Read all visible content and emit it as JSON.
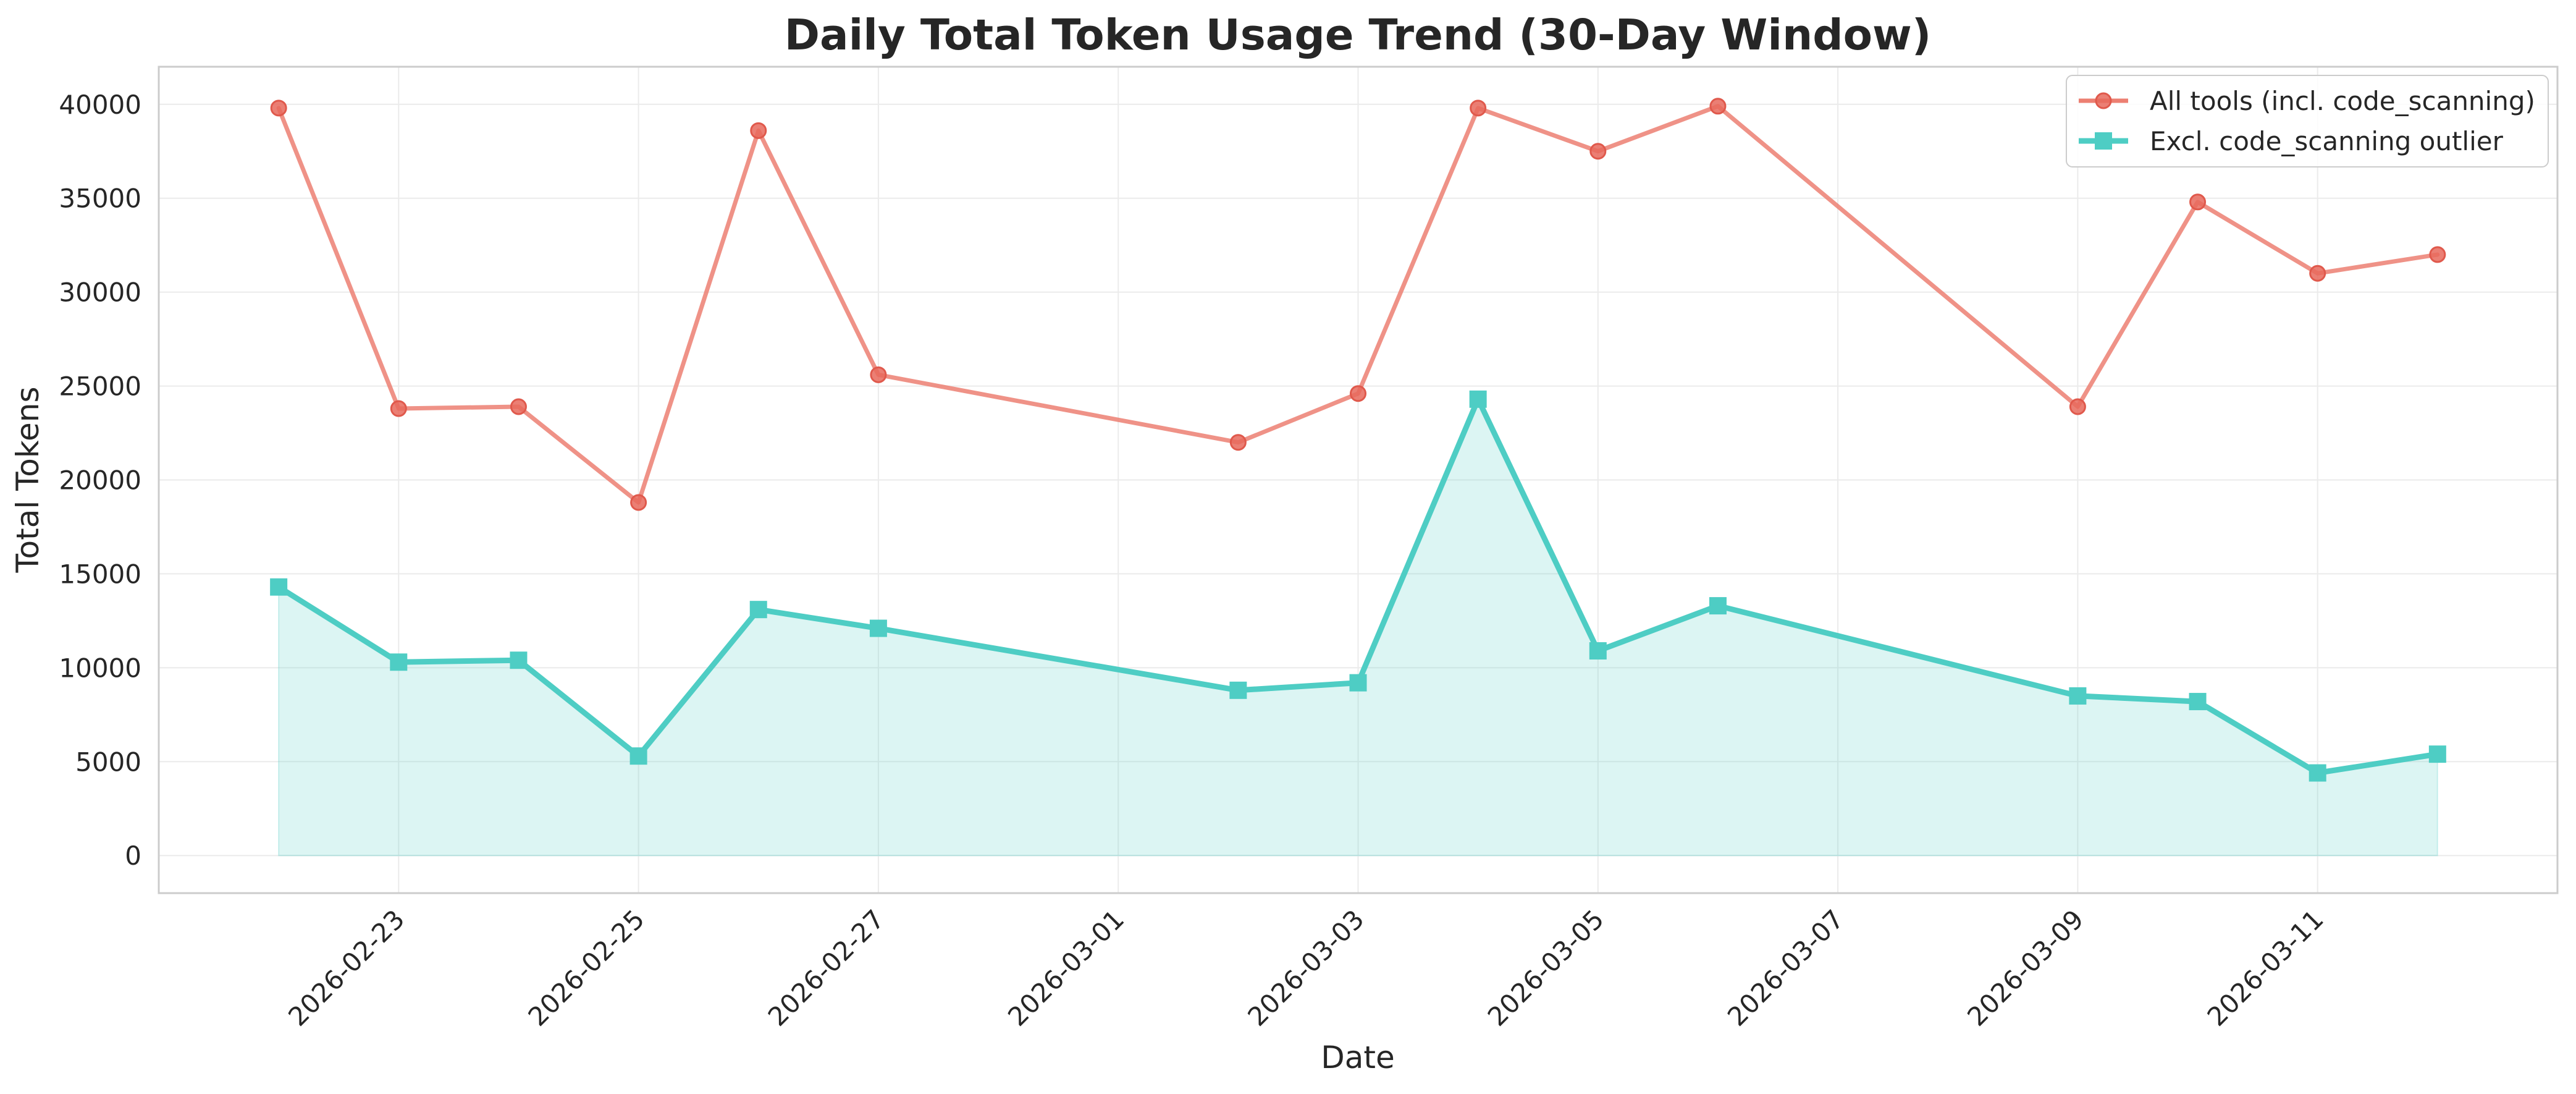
{
  "chart_data": {
    "type": "line",
    "title": "Daily Total Token Usage Trend (30-Day Window)",
    "xlabel": "Date",
    "ylabel": "Total Tokens",
    "x": [
      "2026-02-22",
      "2026-02-23",
      "2026-02-24",
      "2026-02-25",
      "2026-02-26",
      "2026-02-27",
      "2026-03-02",
      "2026-03-03",
      "2026-03-04",
      "2026-03-05",
      "2026-03-06",
      "2026-03-09",
      "2026-03-10",
      "2026-03-11",
      "2026-03-12"
    ],
    "xticks": [
      "2026-02-23",
      "2026-02-25",
      "2026-02-27",
      "2026-03-01",
      "2026-03-03",
      "2026-03-05",
      "2026-03-07",
      "2026-03-09",
      "2026-03-11"
    ],
    "xlim": [
      "2026-02-21",
      "2026-03-13"
    ],
    "yticks": [
      0,
      5000,
      10000,
      15000,
      20000,
      25000,
      30000,
      35000,
      40000
    ],
    "ylim": [
      -2000,
      42000
    ],
    "grid": true,
    "legend_position": "top-right",
    "series": [
      {
        "name": "All tools (incl. code_scanning)",
        "color": "#ec7f72",
        "marker": "circle",
        "values": [
          39800,
          23800,
          23900,
          18800,
          38600,
          25600,
          22000,
          24600,
          39800,
          37500,
          39900,
          23900,
          34800,
          31000,
          32000
        ]
      },
      {
        "name": "Excl. code_scanning outlier",
        "color": "#4ecdc4",
        "marker": "square",
        "fill": true,
        "values": [
          14300,
          10300,
          10400,
          5300,
          13100,
          12100,
          8800,
          9200,
          24300,
          10900,
          13300,
          8500,
          8200,
          4400,
          5400
        ]
      }
    ]
  }
}
